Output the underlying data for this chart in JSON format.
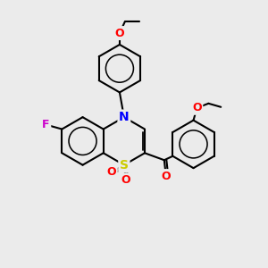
{
  "bg_color": "#ebebeb",
  "bond_color": "#000000",
  "bond_width": 1.5,
  "atom_colors": {
    "S": "#cccc00",
    "N": "#0000ff",
    "O": "#ff0000",
    "F": "#cc00cc",
    "C": "#000000"
  },
  "font_size": 9,
  "figsize": [
    3.0,
    3.0
  ],
  "dpi": 100
}
